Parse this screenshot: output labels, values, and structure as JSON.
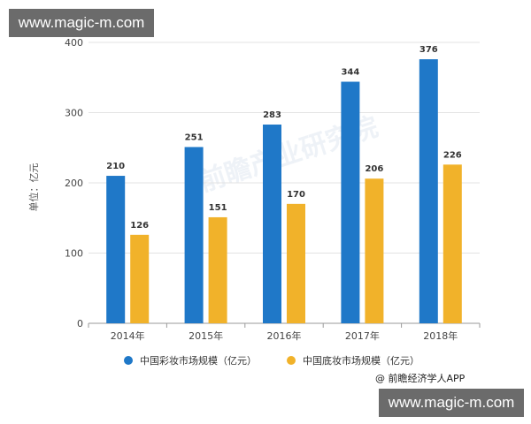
{
  "watermark": {
    "site_text": "www.magic-m.com"
  },
  "source_text": "@ 前瞻经济学人APP",
  "background_watermark_text": "前瞻产业研究院",
  "colors": {
    "series1": "#1f78c8",
    "series2": "#f1b22a",
    "grid": "#e3e3e3",
    "axis": "#9a9a9a"
  },
  "chart_data": {
    "type": "bar",
    "categories": [
      "2014年",
      "2015年",
      "2016年",
      "2017年",
      "2018年"
    ],
    "series": [
      {
        "name": "中国彩妆市场规模（亿元）",
        "values": [
          210,
          251,
          283,
          344,
          376
        ]
      },
      {
        "name": "中国底妆市场规模（亿元）",
        "values": [
          126,
          151,
          170,
          206,
          226
        ]
      }
    ],
    "ylabel": "单位：亿元",
    "ylim": [
      0,
      400
    ],
    "yticks": [
      0,
      100,
      200,
      300,
      400
    ],
    "grid": true,
    "legend_position": "bottom"
  }
}
